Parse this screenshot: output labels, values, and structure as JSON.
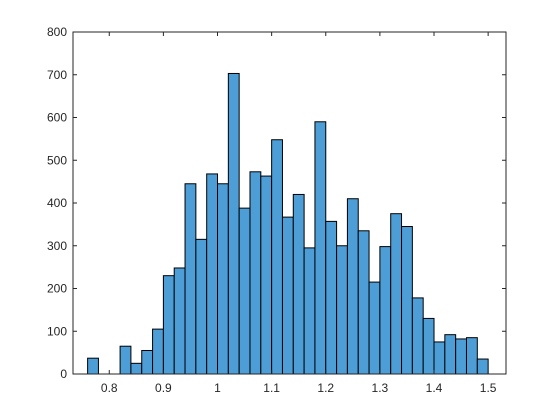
{
  "chart_data": {
    "type": "bar",
    "subtype": "histogram",
    "title": "",
    "xlabel": "",
    "ylabel": "",
    "xlim": [
      0.733,
      1.533
    ],
    "ylim": [
      0,
      800
    ],
    "grid": false,
    "box": true,
    "bar_color": "#4D9DD6",
    "edge_color": "#000000",
    "bin_width": 0.02,
    "bin_start": 0.76,
    "values": [
      37,
      0,
      0,
      65,
      25,
      55,
      105,
      230,
      248,
      445,
      315,
      468,
      445,
      703,
      388,
      473,
      463,
      548,
      367,
      420,
      295,
      590,
      357,
      300,
      410,
      335,
      215,
      298,
      375,
      345,
      178,
      130,
      75,
      92,
      82,
      85,
      35
    ],
    "xticks": [
      "0.8",
      "0.9",
      "1",
      "1.1",
      "1.2",
      "1.3",
      "1.4",
      "1.5"
    ],
    "yticks": [
      "0",
      "100",
      "200",
      "300",
      "400",
      "500",
      "600",
      "700",
      "800"
    ]
  }
}
